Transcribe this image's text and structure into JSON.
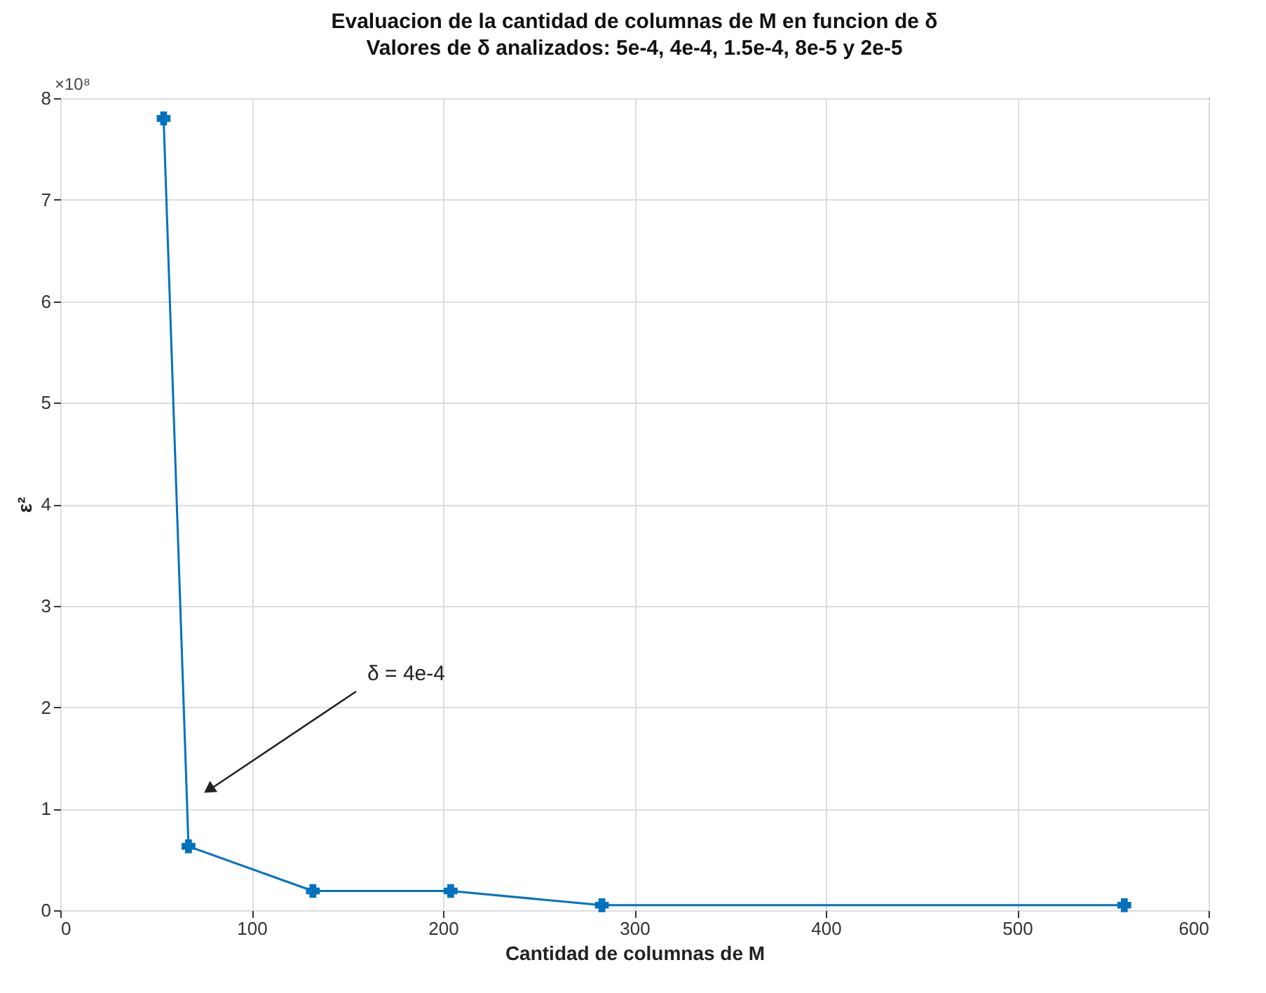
{
  "chart_data": {
    "type": "line",
    "title": "Evaluacion de la cantidad de columnas de M en funcion de δ",
    "subtitle": "Valores de δ analizados: 5e-4, 4e-4, 1.5e-4, 8e-5 y 2e-5",
    "xlabel": "Cantidad de columnas de M",
    "ylabel": "ε²",
    "x": [
      54,
      67,
      132,
      204,
      283,
      556
    ],
    "series": [
      {
        "color": "#0072bd",
        "values": [
          7.8,
          0.63,
          0.19,
          0.19,
          0.05,
          0.05
        ]
      }
    ],
    "xlim": [
      0,
      600
    ],
    "xticks": [
      0,
      100,
      200,
      300,
      400,
      500,
      600
    ],
    "ylim": [
      0,
      8
    ],
    "yticks": [
      0,
      1,
      2,
      3,
      4,
      5,
      6,
      7,
      8
    ],
    "grid": true,
    "marker": "cross",
    "line_style": "solid",
    "annotations": [
      "×10⁸",
      "δ = 4e-4"
    ]
  }
}
